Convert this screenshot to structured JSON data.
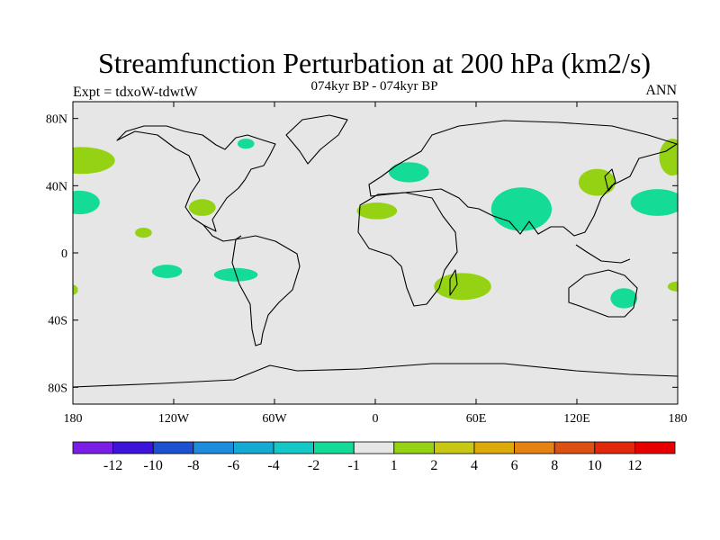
{
  "title": "Streamfunction Perturbation at 200 hPa (km2/s)",
  "subtitle": "074kyr BP - 074kyr BP",
  "left_label": "Expt = tdxoW-tdwtW",
  "right_label": "ANN",
  "map": {
    "projection": "cylindrical-equidistant",
    "lon_range": [
      -180,
      180
    ],
    "lat_range": [
      -90,
      90
    ],
    "background_color": "#e6e6e6",
    "lat_ticks": [
      {
        "value": 80,
        "label": "80N"
      },
      {
        "value": 40,
        "label": "40N"
      },
      {
        "value": 0,
        "label": "0"
      },
      {
        "value": -40,
        "label": "40S"
      },
      {
        "value": -80,
        "label": "80S"
      }
    ],
    "lon_ticks": [
      {
        "value": -180,
        "label": "180"
      },
      {
        "value": -120,
        "label": "120W"
      },
      {
        "value": -60,
        "label": "60W"
      },
      {
        "value": 0,
        "label": "0"
      },
      {
        "value": 60,
        "label": "60E"
      },
      {
        "value": 120,
        "label": "120E"
      },
      {
        "value": 180,
        "label": "180"
      }
    ]
  },
  "colorbar": {
    "colors": [
      "#7a1ee6",
      "#3c14dc",
      "#1e50d2",
      "#1e8cdc",
      "#14aad2",
      "#14c8c8",
      "#14dc96",
      "#e6e6e6",
      "#96d214",
      "#c8c814",
      "#dcaa0a",
      "#e68214",
      "#dc5014",
      "#e1280a",
      "#e60000"
    ],
    "labels": [
      "-12",
      "-10",
      "-8",
      "-6",
      "-4",
      "-2",
      "-1",
      "1",
      "2",
      "4",
      "6",
      "8",
      "10",
      "12"
    ]
  },
  "chart_data": {
    "type": "map",
    "field": "streamfunction perturbation",
    "units": "km2/s",
    "level": "200 hPa",
    "anomaly_regions": [
      {
        "class": "-2 to -1",
        "color": "#14dc96",
        "lon": -176,
        "lat": 30,
        "rlon": 12,
        "rlat": 7
      },
      {
        "class": "-2 to -1",
        "color": "#14dc96",
        "lon": -124,
        "lat": -11,
        "rlon": 9,
        "rlat": 4
      },
      {
        "class": "-2 to -1",
        "color": "#14dc96",
        "lon": -83,
        "lat": -13,
        "rlon": 13,
        "rlat": 4
      },
      {
        "class": "-2 to -1",
        "color": "#14dc96",
        "lon": -77,
        "lat": 65,
        "rlon": 5,
        "rlat": 3
      },
      {
        "class": "-2 to -1",
        "color": "#14dc96",
        "lon": 20,
        "lat": 48,
        "rlon": 12,
        "rlat": 6
      },
      {
        "class": "-2 to -1",
        "color": "#14dc96",
        "lon": 87,
        "lat": 26,
        "rlon": 18,
        "rlat": 13
      },
      {
        "class": "-2 to -1",
        "color": "#14dc96",
        "lon": 148,
        "lat": -27,
        "rlon": 8,
        "rlat": 6
      },
      {
        "class": "-2 to -1",
        "color": "#14dc96",
        "lon": 168,
        "lat": 30,
        "rlon": 16,
        "rlat": 8
      },
      {
        "class": "1 to 2",
        "color": "#96d214",
        "lon": -175,
        "lat": 55,
        "rlon": 20,
        "rlat": 8
      },
      {
        "class": "1 to 2",
        "color": "#96d214",
        "lon": -138,
        "lat": 12,
        "rlon": 5,
        "rlat": 3
      },
      {
        "class": "1 to 2",
        "color": "#96d214",
        "lon": -103,
        "lat": 27,
        "rlon": 8,
        "rlat": 5
      },
      {
        "class": "1 to 2",
        "color": "#96d214",
        "lon": 1,
        "lat": 25,
        "rlon": 12,
        "rlat": 5
      },
      {
        "class": "1 to 2",
        "color": "#96d214",
        "lon": 52,
        "lat": -20,
        "rlon": 17,
        "rlat": 8
      },
      {
        "class": "1 to 2",
        "color": "#96d214",
        "lon": 132,
        "lat": 42,
        "rlon": 11,
        "rlat": 8
      },
      {
        "class": "1 to 2",
        "color": "#96d214",
        "lon": 177,
        "lat": 57,
        "rlon": 8,
        "rlat": 11
      },
      {
        "class": "1 to 2",
        "color": "#96d214",
        "lon": 180,
        "lat": -20,
        "rlon": 6,
        "rlat": 3
      },
      {
        "class": "1 to 2",
        "color": "#96d214",
        "lon": -180,
        "lat": -22,
        "rlon": 3,
        "rlat": 3
      }
    ]
  }
}
